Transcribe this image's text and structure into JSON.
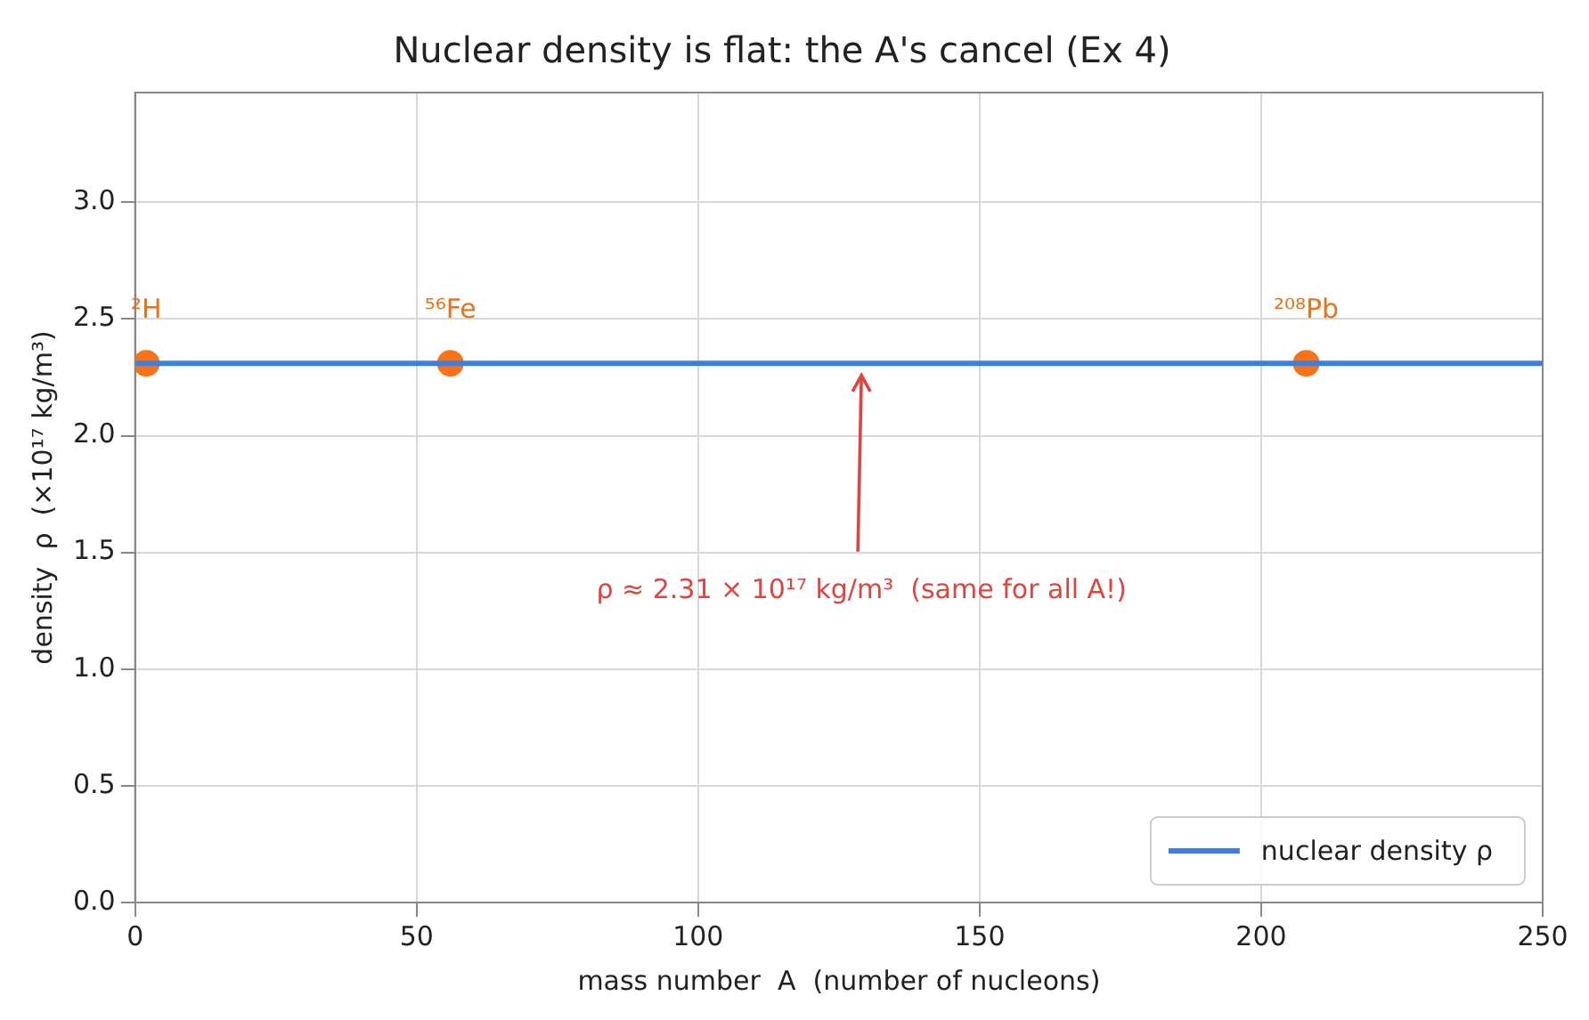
{
  "chart_data": {
    "type": "line",
    "title": "Nuclear density is flat: the A's cancel (Ex 4)",
    "xlabel": "mass number  A  (number of nucleons)",
    "ylabel": "density  ρ  (×10¹⁷ kg/m³)",
    "series": [
      {
        "name": "nuclear density ρ",
        "color": "#3b7fe0",
        "marker": "none",
        "x": [
          0,
          250
        ],
        "values": [
          2.31,
          2.31
        ]
      },
      {
        "type": "scatter",
        "color": "#f97316",
        "marker": "circle",
        "x": [
          2,
          56,
          208
        ],
        "values": [
          2.31,
          2.31,
          2.31
        ]
      }
    ],
    "xlim": [
      0,
      250
    ],
    "xticks": [
      0,
      50,
      100,
      150,
      200,
      250
    ],
    "ylim": [
      0,
      3.47
    ],
    "yticks": [
      {
        "value": 0,
        "label": "0.0"
      },
      {
        "value": 0.5,
        "label": "0.5"
      },
      {
        "value": 1,
        "label": "1.0"
      },
      {
        "value": 1.5,
        "label": "1.5"
      },
      {
        "value": 2,
        "label": "2.0"
      },
      {
        "value": 2.5,
        "label": "2.5"
      },
      {
        "value": 3,
        "label": "3.0"
      }
    ],
    "annotations": [
      {
        "text": "²H",
        "x": 2,
        "y": 2.31
      },
      {
        "text": "⁵⁶Fe",
        "x": 56,
        "y": 2.31
      },
      {
        "text": "²⁰⁸Pb",
        "x": 208,
        "y": 2.31
      },
      "ρ ≈ 2.31 × 10¹⁷ kg/m³  (same for all A!)"
    ],
    "grid": true,
    "legend": "bottom right",
    "line_style": "solid"
  }
}
